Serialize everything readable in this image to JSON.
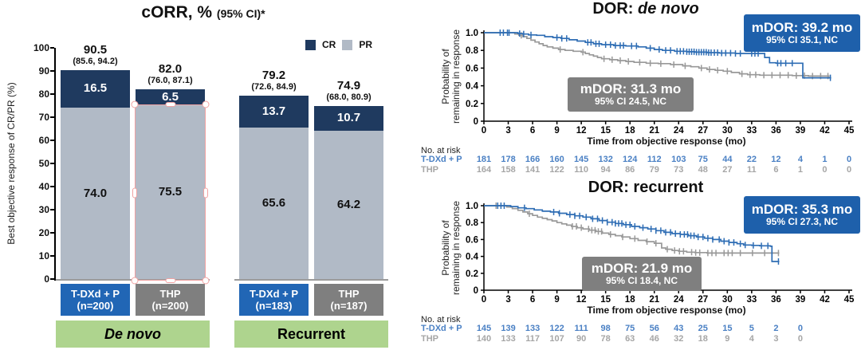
{
  "chart_data": [
    {
      "type": "bar",
      "stacked": true,
      "title": "cORR, %",
      "title_suffix": "(95% CI)*",
      "ylabel": "Best objective response of CR/PR (%)",
      "ylim": [
        0,
        100
      ],
      "y_ticks": [
        0,
        10,
        20,
        30,
        40,
        50,
        60,
        70,
        80,
        90,
        100
      ],
      "legend": [
        {
          "label": "CR",
          "color": "#1f3a5f"
        },
        {
          "label": "PR",
          "color": "#b1bac6"
        }
      ],
      "colors": {
        "cr": "#1f3a5f",
        "pr": "#b1bac6",
        "arm_blue": "#2166b5",
        "arm_gray": "#7f7f7f",
        "group_green": "#aed48e",
        "selection_pink": "#f1a2a2"
      },
      "groups": [
        {
          "label": "De novo",
          "label_italic": true,
          "bars": [
            {
              "arm": "T-DXd + P",
              "n": "(n=200)",
              "arm_color": "#2166b5",
              "total": 90.5,
              "total_label": "90.5",
              "ci_label": "(85.6, 94.2)",
              "cr": 16.5,
              "cr_label": "16.5",
              "pr": 74.0,
              "pr_label": "74.0",
              "selected": false
            },
            {
              "arm": "THP",
              "n": "(n=200)",
              "arm_color": "#7f7f7f",
              "total": 82.0,
              "total_label": "82.0",
              "ci_label": "(76.0, 87.1)",
              "cr": 6.5,
              "cr_label": "6.5",
              "pr": 75.5,
              "pr_label": "75.5",
              "selected": true
            }
          ]
        },
        {
          "label": "Recurrent",
          "label_italic": false,
          "bars": [
            {
              "arm": "T-DXd + P",
              "n": "(n=183)",
              "arm_color": "#2166b5",
              "total": 79.2,
              "total_label": "79.2",
              "ci_label": "(72.6, 84.9)",
              "cr": 13.7,
              "cr_label": "13.7",
              "pr": 65.6,
              "pr_label": "65.6",
              "selected": false
            },
            {
              "arm": "THP",
              "n": "(n=187)",
              "arm_color": "#7f7f7f",
              "total": 74.9,
              "total_label": "74.9",
              "ci_label": "(68.0, 80.9)",
              "cr": 10.7,
              "cr_label": "10.7",
              "pr": 64.2,
              "pr_label": "64.2",
              "selected": false
            }
          ]
        }
      ]
    },
    {
      "type": "line",
      "subtype": "kaplan-meier",
      "title_prefix": "DOR: ",
      "title_em": "de novo",
      "title_em_italic": true,
      "ylabel_lines": [
        "Probability of",
        "remaining in response"
      ],
      "xlabel": "Time from objective response (mo)",
      "xlim": [
        0,
        45
      ],
      "ylim": [
        0,
        1
      ],
      "x_ticks": [
        0,
        3,
        6,
        9,
        12,
        15,
        18,
        21,
        24,
        27,
        30,
        33,
        36,
        39,
        42,
        45
      ],
      "y_tick_labels": [
        "0",
        "0.2",
        "0.4",
        "0.6",
        "0.8",
        "1.0"
      ],
      "annotation_boxes": [
        {
          "line1": "mDOR: 39.2 mo",
          "line2": "95% CI 35.1, NC",
          "bg": "#1e60ab"
        },
        {
          "line1": "mDOR: 31.3 mo",
          "line2": "95% CI 24.5, NC",
          "bg": "#7f7f7f"
        }
      ],
      "risk_table": {
        "label": "No. at risk",
        "rows": [
          {
            "name": "T-DXd + P",
            "text_color": "#4a80c4",
            "values": [
              181,
              178,
              166,
              160,
              145,
              132,
              124,
              112,
              103,
              75,
              44,
              22,
              12,
              4,
              1,
              0
            ]
          },
          {
            "name": "THP",
            "text_color": "#a6a6a6",
            "values": [
              164,
              158,
              141,
              122,
              110,
              94,
              86,
              79,
              73,
              48,
              27,
              11,
              6,
              1,
              0,
              0
            ]
          }
        ]
      },
      "series": [
        {
          "name": "T-DXd + P",
          "color": "#2e6db4",
          "steps": [
            [
              0,
              1.0
            ],
            [
              3.8,
              1.0
            ],
            [
              4.2,
              0.99
            ],
            [
              4.8,
              0.985
            ],
            [
              5.5,
              0.975
            ],
            [
              6.5,
              0.97
            ],
            [
              7.5,
              0.955
            ],
            [
              8.5,
              0.945
            ],
            [
              9.5,
              0.935
            ],
            [
              10.5,
              0.92
            ],
            [
              11.5,
              0.905
            ],
            [
              12.5,
              0.89
            ],
            [
              13.5,
              0.875
            ],
            [
              14.5,
              0.865
            ],
            [
              16,
              0.855
            ],
            [
              17.5,
              0.85
            ],
            [
              19,
              0.84
            ],
            [
              20,
              0.825
            ],
            [
              21,
              0.81
            ],
            [
              22,
              0.8
            ],
            [
              23.5,
              0.79
            ],
            [
              25,
              0.785
            ],
            [
              26,
              0.78
            ],
            [
              27.5,
              0.775
            ],
            [
              29,
              0.77
            ],
            [
              31,
              0.765
            ],
            [
              34.3,
              0.765
            ],
            [
              34.6,
              0.72
            ],
            [
              35.2,
              0.66
            ],
            [
              36,
              0.655
            ],
            [
              39.2,
              0.655
            ],
            [
              39.3,
              0.49
            ],
            [
              42.8,
              0.49
            ]
          ],
          "censor_x": [
            2,
            2.4,
            2.9,
            3.1,
            4.4,
            4.9,
            5.8,
            9,
            9.6,
            10.2,
            12.8,
            13.2,
            13.8,
            14.2,
            15,
            15.6,
            16.2,
            16.8,
            17.2,
            18.2,
            18.8,
            20.5,
            21.6,
            22.4,
            23,
            23.8,
            24.2,
            24.6,
            25,
            25.3,
            25.6,
            25.9,
            26.2,
            26.5,
            26.8,
            27.1,
            27.4,
            27.7,
            28,
            28.4,
            28.8,
            29.3,
            29.8,
            30.4,
            31,
            31.6,
            33,
            33.4,
            33.8,
            36.2,
            36.6,
            37.2,
            38,
            42.7
          ]
        },
        {
          "name": "THP",
          "color": "#999999",
          "steps": [
            [
              0,
              1.0
            ],
            [
              3.3,
              1.0
            ],
            [
              3.8,
              0.985
            ],
            [
              4.3,
              0.97
            ],
            [
              4.8,
              0.955
            ],
            [
              5.3,
              0.935
            ],
            [
              5.8,
              0.915
            ],
            [
              6.3,
              0.895
            ],
            [
              6.8,
              0.875
            ],
            [
              7.3,
              0.855
            ],
            [
              7.8,
              0.84
            ],
            [
              8.5,
              0.825
            ],
            [
              9.2,
              0.81
            ],
            [
              10,
              0.8
            ],
            [
              11,
              0.79
            ],
            [
              12,
              0.78
            ],
            [
              12.5,
              0.765
            ],
            [
              13,
              0.75
            ],
            [
              13.5,
              0.735
            ],
            [
              14,
              0.72
            ],
            [
              14.5,
              0.705
            ],
            [
              15.5,
              0.695
            ],
            [
              16.5,
              0.685
            ],
            [
              17.5,
              0.675
            ],
            [
              18.5,
              0.665
            ],
            [
              20,
              0.655
            ],
            [
              21.5,
              0.65
            ],
            [
              23,
              0.64
            ],
            [
              24.5,
              0.625
            ],
            [
              25.5,
              0.615
            ],
            [
              26.5,
              0.6
            ],
            [
              27.5,
              0.585
            ],
            [
              28.5,
              0.575
            ],
            [
              29.5,
              0.565
            ],
            [
              30.5,
              0.55
            ],
            [
              31.5,
              0.535
            ],
            [
              32.5,
              0.525
            ],
            [
              34,
              0.52
            ],
            [
              38,
              0.515
            ],
            [
              40,
              0.51
            ],
            [
              42.5,
              0.5
            ]
          ],
          "censor_x": [
            4.6,
            9.4,
            12.2,
            14.8,
            15.8,
            16.8,
            17.8,
            19.2,
            20.5,
            21.8,
            23.4,
            24.8,
            26.8,
            27.8,
            28.8,
            30,
            31.8,
            32.8,
            33.5,
            34.5,
            35.5,
            36.5,
            37.5,
            38.5,
            39.5,
            40.5,
            41.5,
            42.4
          ]
        }
      ]
    },
    {
      "type": "line",
      "subtype": "kaplan-meier",
      "title_prefix": "DOR: ",
      "title_em": "recurrent",
      "title_em_italic": false,
      "ylabel_lines": [
        "Probability of",
        "remaining in response"
      ],
      "xlabel": "Time from objective response (mo)",
      "xlim": [
        0,
        45
      ],
      "ylim": [
        0,
        1
      ],
      "x_ticks": [
        0,
        3,
        6,
        9,
        12,
        15,
        18,
        21,
        24,
        27,
        30,
        33,
        36,
        39,
        42,
        45
      ],
      "y_tick_labels": [
        "0",
        "0.2",
        "0.4",
        "0.6",
        "0.8",
        "1.0"
      ],
      "annotation_boxes": [
        {
          "line1": "mDOR: 35.3 mo",
          "line2": "95% CI 27.3, NC",
          "bg": "#1e60ab"
        },
        {
          "line1": "mDOR: 21.9 mo",
          "line2": "95% CI 18.4, NC",
          "bg": "#7f7f7f"
        }
      ],
      "risk_table": {
        "label": "No. at risk",
        "rows": [
          {
            "name": "T-DXd + P",
            "text_color": "#4a80c4",
            "values": [
              145,
              139,
              133,
              122,
              111,
              98,
              75,
              56,
              43,
              25,
              15,
              5,
              2,
              0
            ]
          },
          {
            "name": "THP",
            "text_color": "#a6a6a6",
            "values": [
              140,
              133,
              117,
              107,
              90,
              78,
              63,
              46,
              32,
              18,
              9,
              4,
              3,
              0
            ]
          }
        ]
      },
      "series": [
        {
          "name": "T-DXd + P",
          "color": "#2e6db4",
          "steps": [
            [
              0,
              1.0
            ],
            [
              2.8,
              1.0
            ],
            [
              3.3,
              0.99
            ],
            [
              4.2,
              0.975
            ],
            [
              5.2,
              0.965
            ],
            [
              6.2,
              0.95
            ],
            [
              7.2,
              0.935
            ],
            [
              8.2,
              0.925
            ],
            [
              9.2,
              0.91
            ],
            [
              10.2,
              0.895
            ],
            [
              11.2,
              0.88
            ],
            [
              12.2,
              0.865
            ],
            [
              13.2,
              0.845
            ],
            [
              14.2,
              0.825
            ],
            [
              15.2,
              0.805
            ],
            [
              16.2,
              0.79
            ],
            [
              17.2,
              0.775
            ],
            [
              18.2,
              0.755
            ],
            [
              19.2,
              0.74
            ],
            [
              20.2,
              0.725
            ],
            [
              21.2,
              0.705
            ],
            [
              22.2,
              0.685
            ],
            [
              23.2,
              0.67
            ],
            [
              24.2,
              0.66
            ],
            [
              25.2,
              0.645
            ],
            [
              26.2,
              0.63
            ],
            [
              27.2,
              0.615
            ],
            [
              28.2,
              0.6
            ],
            [
              29.2,
              0.58
            ],
            [
              30.2,
              0.565
            ],
            [
              31.2,
              0.55
            ],
            [
              32,
              0.535
            ],
            [
              33,
              0.53
            ],
            [
              34,
              0.525
            ],
            [
              35.3,
              0.52
            ],
            [
              35.5,
              0.34
            ],
            [
              36.4,
              0.34
            ]
          ],
          "censor_x": [
            1.7,
            2.1,
            2.5,
            5,
            8.6,
            9.3,
            10.6,
            11.2,
            11.8,
            12.6,
            13.4,
            14,
            14.6,
            15.2,
            15.8,
            16.2,
            16.6,
            17,
            17.5,
            18,
            18.6,
            19.6,
            20.6,
            21.2,
            21.8,
            22.4,
            23,
            23.6,
            24.2,
            24.7,
            25.1,
            25.5,
            25.9,
            26.4,
            27,
            27.6,
            28.2,
            29,
            29.6,
            30.2,
            30.8,
            31.6,
            32.2,
            33.2,
            34.2,
            35,
            36.3
          ]
        },
        {
          "name": "THP",
          "color": "#999999",
          "steps": [
            [
              0,
              1.0
            ],
            [
              2.3,
              1.0
            ],
            [
              2.8,
              0.985
            ],
            [
              3.5,
              0.965
            ],
            [
              4.2,
              0.945
            ],
            [
              4.8,
              0.925
            ],
            [
              5.4,
              0.905
            ],
            [
              6,
              0.885
            ],
            [
              6.6,
              0.865
            ],
            [
              7.2,
              0.85
            ],
            [
              7.8,
              0.835
            ],
            [
              8.4,
              0.82
            ],
            [
              9,
              0.8
            ],
            [
              9.6,
              0.785
            ],
            [
              10.2,
              0.77
            ],
            [
              10.8,
              0.755
            ],
            [
              11.5,
              0.74
            ],
            [
              12.2,
              0.725
            ],
            [
              13,
              0.71
            ],
            [
              13.8,
              0.695
            ],
            [
              14.6,
              0.675
            ],
            [
              15.4,
              0.66
            ],
            [
              16.2,
              0.645
            ],
            [
              17,
              0.63
            ],
            [
              18,
              0.61
            ],
            [
              19,
              0.59
            ],
            [
              20,
              0.575
            ],
            [
              21,
              0.555
            ],
            [
              21.9,
              0.5
            ],
            [
              22.4,
              0.485
            ],
            [
              23.2,
              0.47
            ],
            [
              24,
              0.46
            ],
            [
              25,
              0.45
            ],
            [
              26,
              0.445
            ],
            [
              27.5,
              0.44
            ],
            [
              36.4,
              0.44
            ]
          ],
          "censor_x": [
            1.5,
            5.6,
            10.9,
            11.4,
            12,
            12.9,
            13.3,
            13.7,
            14.1,
            14.5,
            15.6,
            17.1,
            18.6,
            20.1,
            21.2,
            22.6,
            23.5,
            24.1,
            24.6,
            25.6,
            26.1,
            26.6,
            27.6,
            28.1,
            28.6,
            29.6,
            30.1,
            30.6,
            31.6,
            33.1,
            34.6,
            36.3
          ]
        }
      ]
    }
  ]
}
